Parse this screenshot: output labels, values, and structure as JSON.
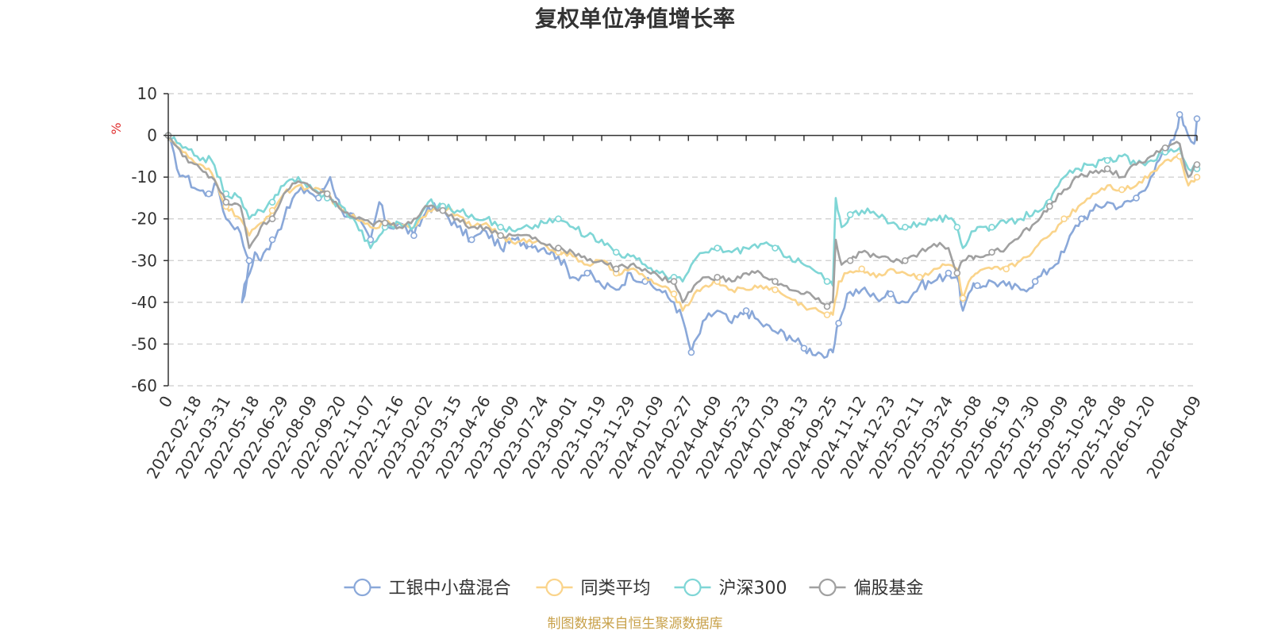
{
  "chart_data": {
    "type": "line",
    "title": "复权单位净值增长率",
    "ylabel": "%",
    "ylim": [
      -60,
      10
    ],
    "yticks": [
      "10",
      "0",
      "-10",
      "-20",
      "-30",
      "-40",
      "-50",
      "-60"
    ],
    "x_tick_labels": [
      "0",
      "2022-02-18",
      "2022-03-31",
      "2022-05-18",
      "2022-06-29",
      "2022-08-09",
      "2022-09-20",
      "2022-11-07",
      "2022-12-16",
      "2023-02-02",
      "2023-03-15",
      "2023-04-26",
      "2023-06-09",
      "2023-07-24",
      "2023-09-01",
      "2023-10-19",
      "2023-11-29",
      "2024-01-09",
      "2024-02-27",
      "2024-04-09",
      "2024-05-23",
      "2024-07-03",
      "2024-08-13",
      "2024-09-25",
      "2024-11-12",
      "2024-12-23",
      "2025-02-11",
      "2025-03-24",
      "2025-05-08",
      "2025-06-19",
      "2025-07-30",
      "2025-09-09",
      "2025-10-28",
      "2025-12-08",
      "2026-01-20",
      "2026-04-09"
    ],
    "x_tick_positions": [
      0,
      1,
      2,
      3,
      4,
      5,
      6,
      7,
      8,
      9,
      10,
      11,
      12,
      13,
      14,
      15,
      16,
      17,
      18,
      19,
      20,
      21,
      22,
      23,
      24,
      25,
      26,
      27,
      28,
      29,
      30,
      31,
      32,
      33,
      34,
      35.6
    ],
    "x_range": [
      0,
      35.6
    ],
    "grid": true,
    "legend_position": "bottom",
    "series": [
      {
        "name": "工银中小盘混合",
        "color": "#8aa8d9",
        "x": [
          0,
          0.3,
          0.6,
          1.0,
          1.4,
          1.7,
          2.0,
          2.4,
          2.8,
          2.55,
          3.0,
          3.2,
          3.6,
          4.0,
          4.4,
          4.8,
          5.2,
          5.6,
          6.0,
          6.5,
          7.0,
          7.3,
          7.6,
          8.0,
          8.5,
          9.0,
          9.5,
          10.0,
          10.5,
          11.0,
          11.5,
          12.0,
          12.5,
          13.0,
          13.5,
          14.0,
          14.5,
          15.0,
          15.5,
          16.0,
          16.5,
          17.0,
          17.5,
          17.8,
          18.1,
          18.6,
          19.0,
          19.5,
          20.0,
          20.5,
          21.0,
          21.5,
          22.0,
          22.5,
          22.8,
          23.0,
          23.2,
          23.5,
          24.0,
          24.5,
          25.0,
          25.5,
          26.0,
          26.5,
          27.0,
          27.3,
          27.5,
          27.8,
          28.0,
          28.5,
          29.0,
          29.5,
          30.0,
          30.5,
          31.0,
          31.3,
          31.6,
          32.0,
          32.5,
          33.0,
          33.5,
          34.0,
          34.5,
          34.8,
          35.0,
          35.2,
          35.5,
          35.6
        ],
        "values": [
          0,
          -8,
          -10,
          -13,
          -14,
          -12,
          -20,
          -22,
          -30,
          -40,
          -28,
          -30,
          -25,
          -20,
          -14,
          -13,
          -15,
          -10,
          -18,
          -20,
          -25,
          -16,
          -22,
          -21,
          -24,
          -17,
          -18,
          -22,
          -25,
          -23,
          -27,
          -25,
          -26,
          -27,
          -29,
          -34,
          -33,
          -36,
          -37,
          -33,
          -35,
          -37,
          -40,
          -44,
          -52,
          -44,
          -42,
          -45,
          -42,
          -45,
          -47,
          -48,
          -51,
          -52,
          -53,
          -52,
          -45,
          -38,
          -37,
          -39,
          -38,
          -40,
          -36,
          -35,
          -33,
          -34,
          -42,
          -37,
          -36,
          -35,
          -36,
          -37,
          -35,
          -32,
          -28,
          -23,
          -20,
          -18,
          -16,
          -17,
          -15,
          -10,
          -4,
          -1,
          5,
          2,
          -2,
          4
        ]
      },
      {
        "name": "同类平均",
        "color": "#fad48b",
        "x": [
          0,
          0.5,
          1.0,
          1.5,
          2.0,
          2.5,
          2.8,
          3.2,
          3.6,
          4.0,
          4.5,
          5.0,
          5.5,
          6.0,
          6.5,
          7.0,
          7.5,
          8.0,
          8.5,
          9.0,
          9.5,
          10.0,
          10.5,
          11.0,
          11.5,
          12.0,
          12.5,
          13.0,
          13.5,
          14.0,
          14.5,
          15.0,
          15.5,
          16.0,
          16.5,
          17.0,
          17.5,
          17.8,
          18.2,
          18.6,
          19.0,
          19.5,
          20.0,
          20.5,
          21.0,
          21.5,
          22.0,
          22.5,
          22.8,
          23.0,
          23.2,
          23.5,
          24.0,
          24.5,
          25.0,
          25.5,
          26.0,
          26.5,
          27.0,
          27.3,
          27.5,
          27.8,
          28.0,
          28.5,
          29.0,
          29.5,
          30.0,
          30.5,
          31.0,
          31.5,
          32.0,
          32.5,
          33.0,
          33.5,
          34.0,
          34.5,
          35.0,
          35.3,
          35.6
        ],
        "values": [
          0,
          -4,
          -7,
          -9,
          -17,
          -20,
          -24,
          -21,
          -18,
          -14,
          -12,
          -13,
          -14,
          -18,
          -20,
          -22,
          -21,
          -21,
          -22,
          -18,
          -17,
          -19,
          -22,
          -21,
          -24,
          -26,
          -25,
          -26,
          -28,
          -29,
          -31,
          -30,
          -33,
          -32,
          -34,
          -36,
          -38,
          -42,
          -38,
          -36,
          -35,
          -37,
          -37,
          -36,
          -37,
          -39,
          -41,
          -42,
          -43,
          -43,
          -35,
          -33,
          -32,
          -34,
          -32,
          -33,
          -34,
          -32,
          -31,
          -32,
          -39,
          -34,
          -33,
          -32,
          -32,
          -30,
          -27,
          -24,
          -20,
          -17,
          -14,
          -12,
          -13,
          -12,
          -9,
          -6,
          -5,
          -12,
          -10
        ]
      },
      {
        "name": "沪深300",
        "color": "#7fd6d6",
        "x": [
          0,
          0.5,
          1.0,
          1.5,
          2.0,
          2.5,
          2.8,
          3.2,
          3.6,
          4.0,
          4.5,
          5.0,
          5.5,
          6.0,
          6.5,
          7.0,
          7.5,
          8.0,
          8.5,
          9.0,
          9.5,
          10.0,
          10.5,
          11.0,
          11.5,
          12.0,
          12.5,
          13.0,
          13.5,
          14.0,
          14.5,
          15.0,
          15.5,
          16.0,
          16.5,
          17.0,
          17.5,
          17.8,
          18.2,
          18.6,
          19.0,
          19.5,
          20.0,
          20.5,
          21.0,
          21.5,
          22.0,
          22.5,
          22.8,
          23.0,
          23.1,
          23.3,
          23.6,
          24.0,
          24.5,
          25.0,
          25.5,
          26.0,
          26.5,
          27.0,
          27.3,
          27.5,
          27.8,
          28.0,
          28.5,
          29.0,
          29.5,
          30.0,
          30.5,
          31.0,
          31.5,
          32.0,
          32.5,
          33.0,
          33.5,
          34.0,
          34.5,
          35.0,
          35.3,
          35.6
        ],
        "values": [
          0,
          -3,
          -5,
          -6,
          -14,
          -15,
          -20,
          -18,
          -16,
          -12,
          -10,
          -13,
          -15,
          -17,
          -21,
          -27,
          -22,
          -21,
          -22,
          -16,
          -17,
          -18,
          -19,
          -20,
          -22,
          -23,
          -22,
          -21,
          -20,
          -22,
          -24,
          -25,
          -28,
          -29,
          -31,
          -33,
          -34,
          -35,
          -30,
          -28,
          -27,
          -28,
          -27,
          -26,
          -27,
          -29,
          -31,
          -33,
          -35,
          -36,
          -15,
          -22,
          -19,
          -18,
          -19,
          -21,
          -22,
          -21,
          -20,
          -20,
          -22,
          -27,
          -23,
          -22,
          -22,
          -21,
          -20,
          -18,
          -16,
          -10,
          -8,
          -7,
          -6,
          -5,
          -7,
          -6,
          -4,
          -3,
          -8,
          -8
        ]
      },
      {
        "name": "偏股基金",
        "color": "#a0a0a0",
        "x": [
          0,
          0.5,
          1.0,
          1.5,
          2.0,
          2.5,
          2.8,
          3.2,
          3.6,
          4.0,
          4.5,
          5.0,
          5.5,
          6.0,
          6.5,
          7.0,
          7.5,
          8.0,
          8.5,
          9.0,
          9.5,
          10.0,
          10.5,
          11.0,
          11.5,
          12.0,
          12.5,
          13.0,
          13.5,
          14.0,
          14.5,
          15.0,
          15.5,
          16.0,
          16.5,
          17.0,
          17.5,
          17.8,
          18.2,
          18.6,
          19.0,
          19.5,
          20.0,
          20.5,
          21.0,
          21.5,
          22.0,
          22.5,
          22.8,
          23.0,
          23.1,
          23.3,
          23.6,
          24.0,
          24.5,
          25.0,
          25.5,
          26.0,
          26.5,
          27.0,
          27.3,
          27.5,
          27.8,
          28.0,
          28.5,
          29.0,
          29.5,
          30.0,
          30.5,
          31.0,
          31.5,
          32.0,
          32.5,
          33.0,
          33.5,
          34.0,
          34.5,
          35.0,
          35.3,
          35.6
        ],
        "values": [
          0,
          -5,
          -7,
          -10,
          -16,
          -17,
          -27,
          -22,
          -20,
          -14,
          -11,
          -13,
          -14,
          -18,
          -20,
          -21,
          -21,
          -22,
          -20,
          -17,
          -18,
          -20,
          -22,
          -22,
          -24,
          -24,
          -24,
          -26,
          -27,
          -28,
          -30,
          -30,
          -32,
          -31,
          -32,
          -34,
          -35,
          -40,
          -36,
          -34,
          -34,
          -35,
          -33,
          -33,
          -35,
          -37,
          -38,
          -39,
          -41,
          -40,
          -25,
          -31,
          -30,
          -28,
          -29,
          -30,
          -30,
          -28,
          -26,
          -27,
          -33,
          -30,
          -29,
          -29,
          -28,
          -27,
          -24,
          -21,
          -17,
          -13,
          -10,
          -9,
          -8,
          -10,
          -7,
          -5,
          -3,
          -2,
          -10,
          -7
        ]
      }
    ]
  },
  "footer": {
    "source": "制图数据来自恒生聚源数据库",
    "source_color": "#c8a14a"
  }
}
